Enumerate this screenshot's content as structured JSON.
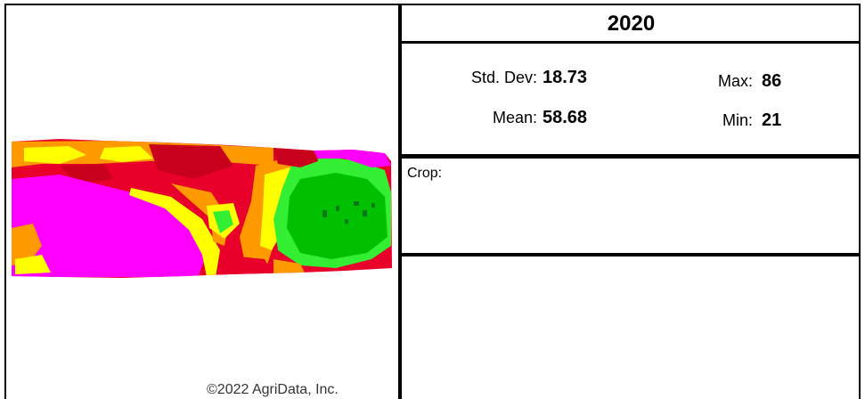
{
  "copyright": "©2022 AgriData, Inc.",
  "year": "2020",
  "stats": {
    "std_dev_label": "Std. Dev:",
    "std_dev_value": "18.73",
    "mean_label": "Mean:",
    "mean_value": "58.68",
    "max_label": "Max:",
    "max_value": "86",
    "min_label": "Min:",
    "min_value": "21"
  },
  "crop_label": "Crop:",
  "colors": {
    "magenta": "#ff00ff",
    "red": "#e8002a",
    "dark_red": "#c8001c",
    "orange": "#ff9900",
    "yellow": "#ffff00",
    "light_green": "#33ee33",
    "green": "#00c000",
    "dark_green": "#007a1a"
  }
}
